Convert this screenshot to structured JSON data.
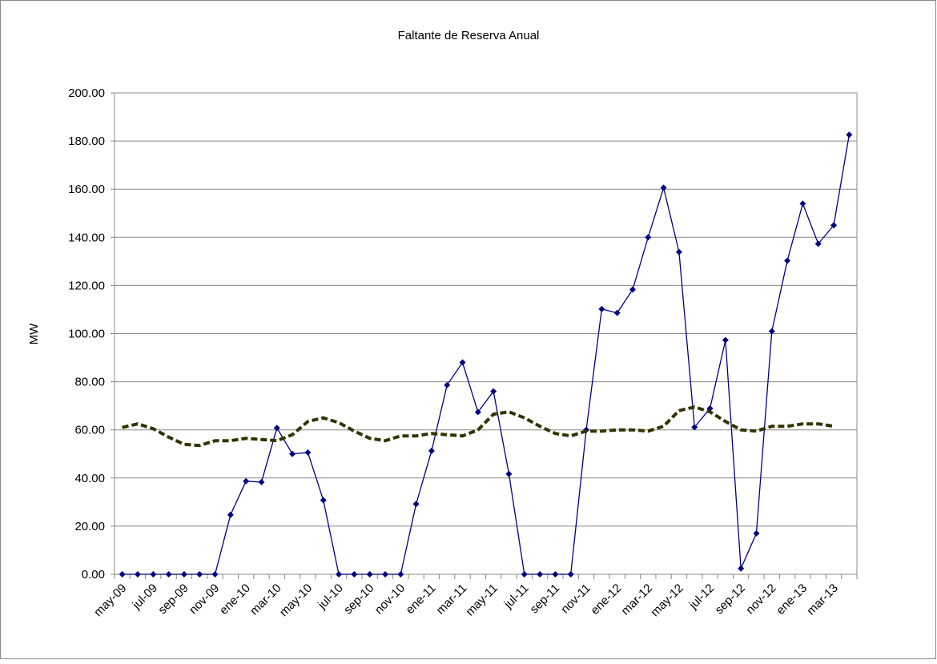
{
  "chart_data": {
    "type": "line",
    "title": "Faltante de Reserva Anual",
    "y_label": "MW",
    "categories": [
      "may-09",
      null,
      "jul-09",
      null,
      "sep-09",
      null,
      "nov-09",
      null,
      "ene-10",
      null,
      "mar-10",
      null,
      "may-10",
      null,
      "jul-10",
      null,
      "sep-10",
      null,
      "nov-10",
      null,
      "ene-11",
      null,
      "mar-11",
      null,
      "may-11",
      null,
      "jul-11",
      null,
      "sep-11",
      null,
      "nov-11",
      null,
      "ene-12",
      null,
      "mar-12",
      null,
      "may-12",
      null,
      "jul-12",
      null,
      "sep-12",
      null,
      "nov-12",
      null,
      "ene-13",
      null,
      "mar-13",
      null
    ],
    "series": [
      {
        "color": "#000080",
        "dashed": false,
        "markers": true,
        "values": [
          0,
          0,
          0,
          0,
          0,
          0,
          0,
          24.7,
          38.7,
          38.3,
          60.8,
          50,
          50.6,
          30.8,
          0,
          0,
          0,
          0,
          0,
          29.2,
          51.3,
          78.6,
          88,
          67.4,
          76,
          41.7,
          0,
          0,
          0,
          0,
          60,
          110.2,
          108.6,
          118.3,
          140,
          160.6,
          133.9,
          61.1,
          68.9,
          97.3,
          2.4,
          17,
          101,
          130.3,
          154,
          137.3,
          145,
          182.6
        ]
      },
      {
        "color": "#333300",
        "dashed": true,
        "markers": false,
        "values": [
          61,
          62.5,
          60.5,
          57,
          54,
          53.5,
          55.5,
          55.5,
          56.5,
          56,
          55.5,
          58,
          63.5,
          65,
          63,
          59.5,
          56.5,
          55.5,
          57.5,
          57.5,
          58.5,
          58,
          57.5,
          60,
          66.5,
          67.5,
          65,
          61.5,
          58.5,
          57.5,
          59.5,
          59.5,
          60,
          60,
          59.5,
          61.5,
          68,
          69.5,
          67.5,
          63.5,
          60,
          59.5,
          61.5,
          61.5,
          62.5,
          62.5,
          61.5,
          null
        ]
      }
    ],
    "ylim": [
      0,
      200
    ],
    "yticks": [
      {
        "value": 0,
        "label": "0.00"
      },
      {
        "value": 20,
        "label": "20.00"
      },
      {
        "value": 40,
        "label": "40.00"
      },
      {
        "value": 60,
        "label": "60.00"
      },
      {
        "value": 80,
        "label": "80.00"
      },
      {
        "value": 100,
        "label": "100.00"
      },
      {
        "value": 120,
        "label": "120.00"
      },
      {
        "value": 140,
        "label": "140.00"
      },
      {
        "value": 160,
        "label": "160.00"
      },
      {
        "value": 180,
        "label": "180.00"
      },
      {
        "value": 200,
        "label": "200.00"
      }
    ],
    "grid": true
  }
}
